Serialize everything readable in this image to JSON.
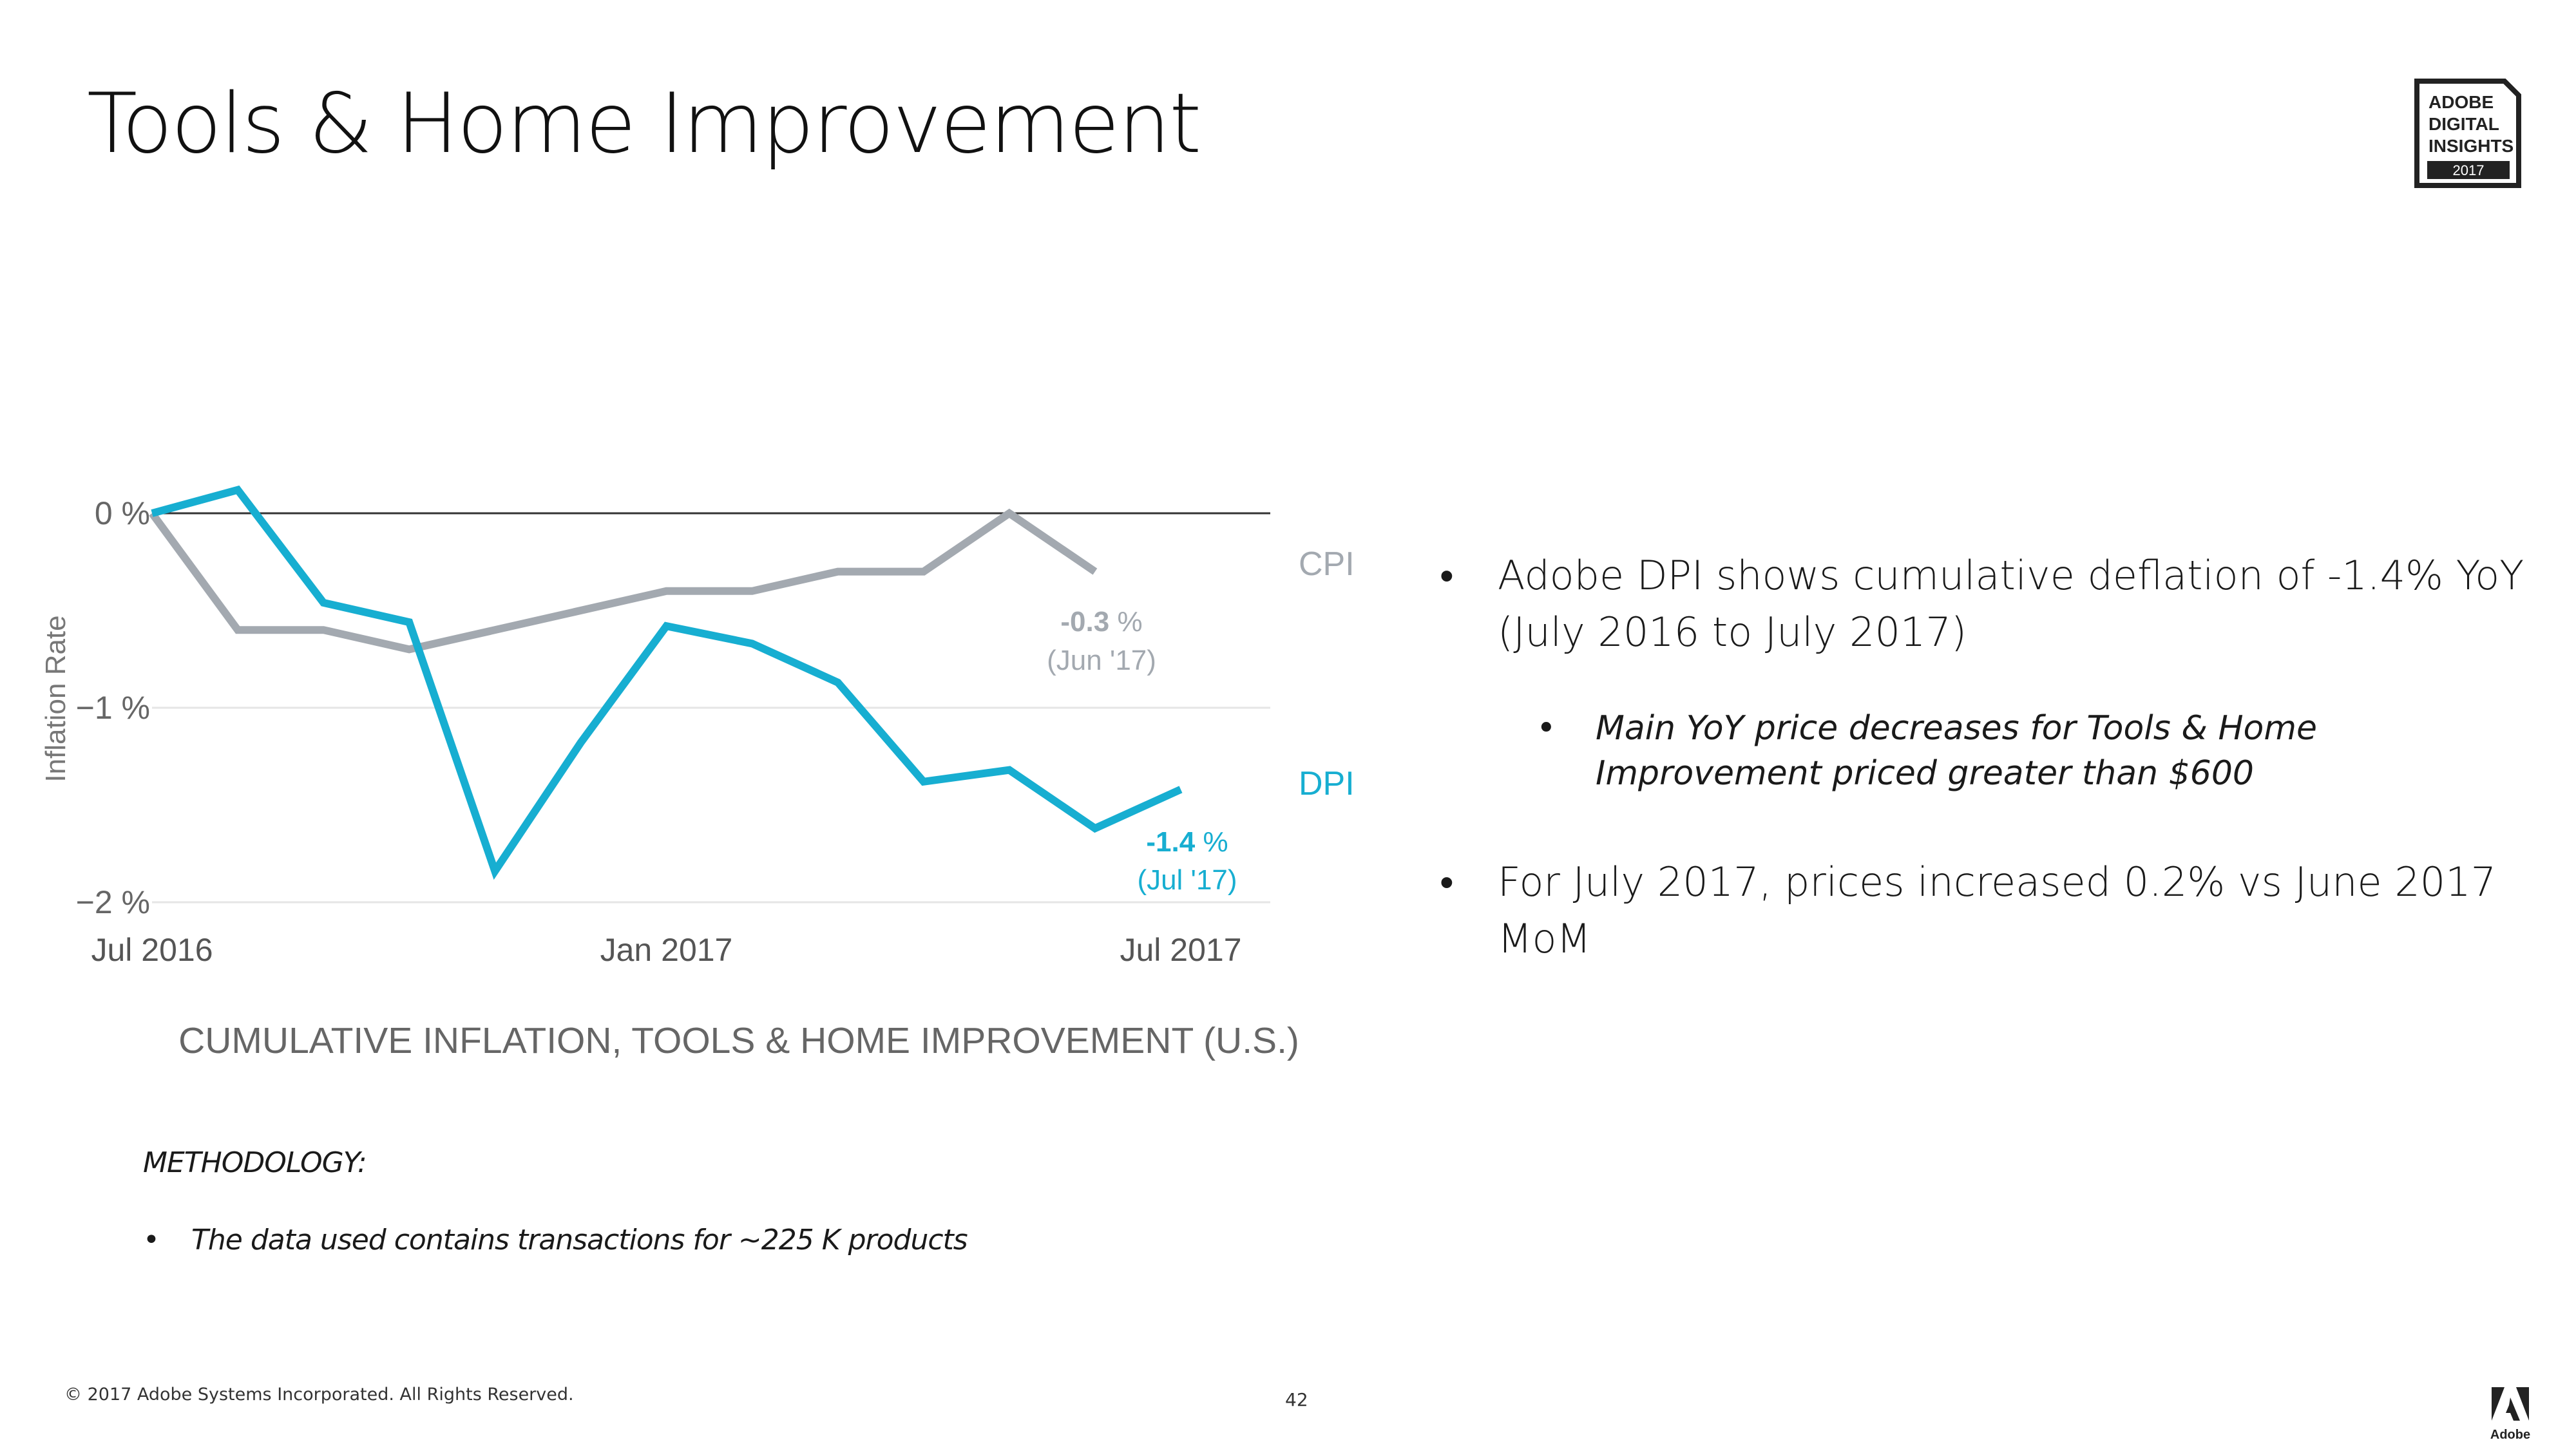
{
  "slide": {
    "title": "Tools & Home Improvement",
    "badge": {
      "lines": [
        "ADOBE",
        "DIGITAL",
        "INSIGHTS"
      ],
      "year": "2017"
    },
    "bullets": [
      "Adobe DPI shows cumulative deflation of -1.4% YoY (July 2016 to July 2017)",
      "For July 2017, prices increased 0.2% vs June 2017 MoM"
    ],
    "sub_bullets": [
      "Main YoY price decreases for Tools & Home Improvement priced greater than $600"
    ],
    "methodology": {
      "label": "METHODOLOGY:",
      "items": [
        "The data used contains transactions for ~225 K products"
      ]
    },
    "footer": {
      "copyright": "© 2017 Adobe Systems Incorporated.  All Rights Reserved.",
      "page": "42",
      "logo_text": "Adobe"
    }
  },
  "chart_data": {
    "type": "line",
    "title": "CUMULATIVE INFLATION, TOOLS & HOME IMPROVEMENT (U.S.)",
    "ylabel": "Inflation Rate",
    "xlabel": "",
    "ylim": [
      -2,
      0.1
    ],
    "y_ticks": [
      0,
      -1,
      -2
    ],
    "y_tick_labels": [
      "0 %",
      "−1 %",
      "−2 %"
    ],
    "x_ticks": [
      0,
      6,
      12
    ],
    "x_tick_labels": [
      "Jul 2016",
      "Jan 2017",
      "Jul 2017"
    ],
    "grid": "horizontal",
    "series": [
      {
        "name": "CPI",
        "color": "#a3a9b0",
        "x": [
          0,
          1,
          2,
          3,
          4,
          5,
          6,
          7,
          8,
          9,
          10,
          11
        ],
        "values": [
          0,
          -0.6,
          -0.6,
          -0.7,
          -0.6,
          -0.5,
          -0.4,
          -0.4,
          -0.3,
          -0.3,
          0.0,
          -0.3
        ],
        "end_value_label": "-0.3",
        "end_unit": "%",
        "end_date_label": "(Jun '17)"
      },
      {
        "name": "DPI",
        "color": "#17aed1",
        "x": [
          0,
          1,
          2,
          3,
          4,
          5,
          6,
          7,
          8,
          9,
          10,
          11,
          12
        ],
        "values": [
          0,
          0.12,
          -0.46,
          -0.56,
          -1.84,
          -1.18,
          -0.58,
          -0.67,
          -0.87,
          -1.38,
          -1.32,
          -1.62,
          -1.42
        ],
        "end_value_label": "-1.4",
        "end_unit": "%",
        "end_date_label": "(Jul '17)"
      }
    ]
  }
}
